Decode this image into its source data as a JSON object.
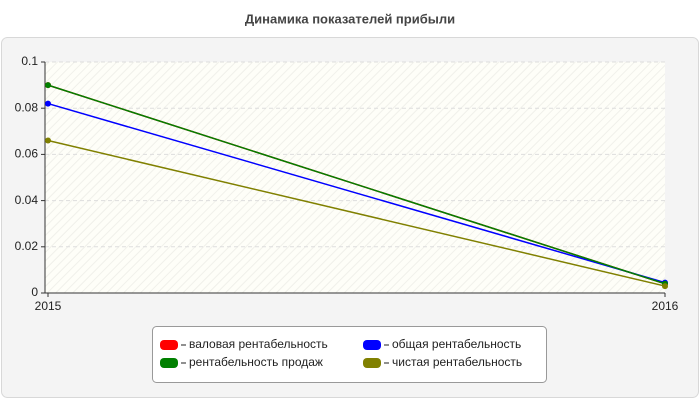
{
  "chart_data": {
    "type": "line",
    "title": "Динамика показателей прибыли",
    "categories": [
      "2015",
      "2016"
    ],
    "series": [
      {
        "name": "валовая рентабельность",
        "color": "#ff0000",
        "values": [
          0.09,
          0.004
        ]
      },
      {
        "name": "общая рентабельность",
        "color": "#0000ff",
        "values": [
          0.082,
          0.0045
        ]
      },
      {
        "name": "рентабельность продаж",
        "color": "#008000",
        "values": [
          0.09,
          0.004
        ]
      },
      {
        "name": "чистая рентабельность",
        "color": "#808000",
        "values": [
          0.066,
          0.003
        ]
      }
    ],
    "ylim": [
      0,
      0.1
    ],
    "yticks": [
      0,
      0.02,
      0.04,
      0.06,
      0.08,
      0.1
    ],
    "grid": true
  }
}
